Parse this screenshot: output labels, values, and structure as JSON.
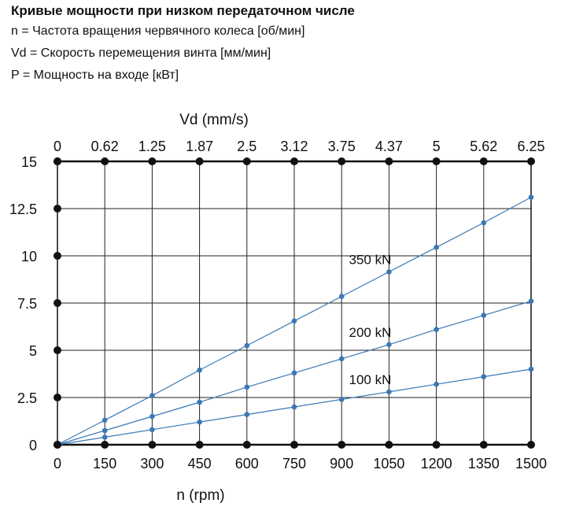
{
  "header": {
    "title": "Кривые мощности при низком передаточном числе",
    "legend_lines": [
      "n = Частота вращения червячного колеса [об/мин]",
      "Vd = Скорость перемещения винта [мм/мин]",
      "P = Мощность на входе [кВт]"
    ]
  },
  "chart_data": {
    "type": "line",
    "title": "",
    "xlabel": "n (rpm)",
    "x2label": "Vd (mm/s)",
    "ylabel": "",
    "x": [
      0,
      150,
      300,
      450,
      600,
      750,
      900,
      1050,
      1200,
      1350,
      1500
    ],
    "x_ticks": [
      "0",
      "150",
      "300",
      "450",
      "600",
      "750",
      "900",
      "1050",
      "1200",
      "1350",
      "1500"
    ],
    "x2_ticks": [
      "0",
      "0.62",
      "1.25",
      "1.87",
      "2.5",
      "3.12",
      "3.75",
      "4.37",
      "5",
      "5.62",
      "6.25"
    ],
    "y_ticks": [
      "0",
      "2.5",
      "5",
      "7.5",
      "10",
      "12.5",
      "15"
    ],
    "xlim": [
      0,
      1500
    ],
    "ylim": [
      0,
      15
    ],
    "grid": true,
    "series": [
      {
        "name": "350 kN",
        "values": [
          0,
          1.3,
          2.6,
          3.95,
          5.25,
          6.55,
          7.85,
          9.15,
          10.45,
          11.75,
          13.1
        ]
      },
      {
        "name": "200 kN",
        "values": [
          0,
          0.75,
          1.5,
          2.25,
          3.05,
          3.8,
          4.55,
          5.3,
          6.1,
          6.85,
          7.6
        ]
      },
      {
        "name": "100 kN",
        "values": [
          0,
          0.4,
          0.8,
          1.2,
          1.6,
          2.0,
          2.4,
          2.8,
          3.2,
          3.6,
          4.0
        ]
      }
    ],
    "colors": {
      "series": "#3a78b5",
      "grid": "#222222",
      "axis_dot": "#111111"
    }
  }
}
